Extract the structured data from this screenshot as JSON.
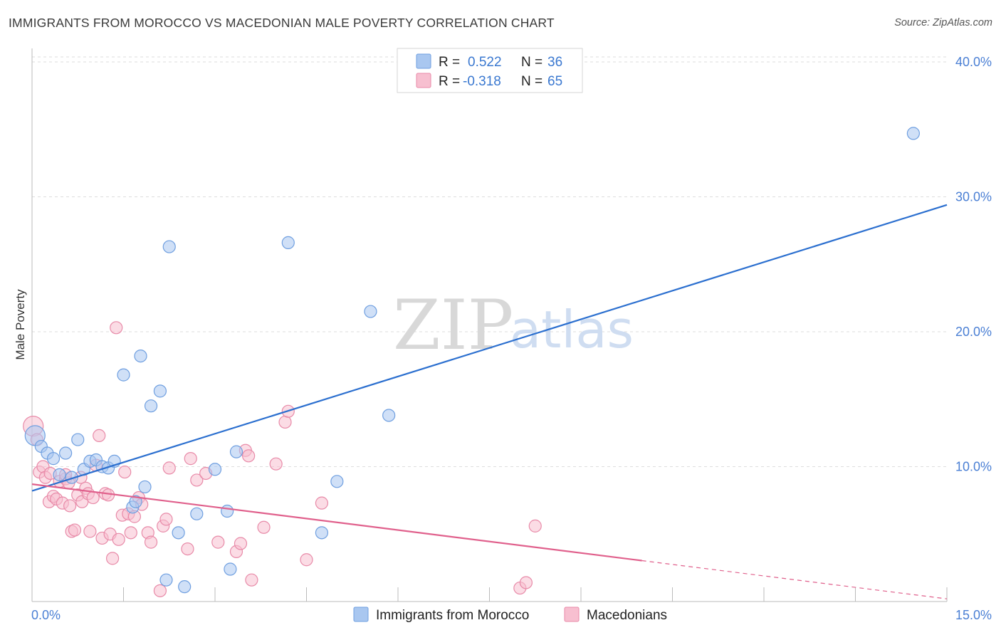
{
  "title": "IMMIGRANTS FROM MOROCCO VS MACEDONIAN MALE POVERTY CORRELATION CHART",
  "source": "Source: ZipAtlas.com",
  "watermark": {
    "zip": "ZIP",
    "atlas": "atlas"
  },
  "legend": {
    "r_label": "R =",
    "n_label": "N =",
    "rows": [
      {
        "r": "0.522",
        "n": "36"
      },
      {
        "r": "-0.318",
        "n": "65"
      }
    ]
  },
  "colors": {
    "blue_fill": "#a9c7f0",
    "blue_stroke": "#6f9fe0",
    "blue_line": "#2b6fcf",
    "pink_fill": "#f7bfd0",
    "pink_stroke": "#e88aa8",
    "pink_line": "#e0608c",
    "grid": "#dddddd",
    "axis_text": "#4a7fd4"
  },
  "chart_data": {
    "type": "scatter",
    "title": "IMMIGRANTS FROM MOROCCO VS MACEDONIAN MALE POVERTY CORRELATION CHART",
    "xlabel": "",
    "ylabel": "Male Poverty",
    "xlim": [
      0,
      15
    ],
    "ylim": [
      0,
      41
    ],
    "x_tick_labels": [
      "0.0%",
      "15.0%"
    ],
    "y_ticks": [
      10,
      20,
      30,
      40
    ],
    "y_tick_labels": [
      "10.0%",
      "20.0%",
      "30.0%",
      "40.0%"
    ],
    "series": [
      {
        "name": "Immigrants from Morocco",
        "color": "blue",
        "r": 0.522,
        "n": 36,
        "trend": {
          "x": [
            0,
            15
          ],
          "y": [
            8.2,
            29.4
          ],
          "dashed_from": null
        },
        "points": [
          [
            0.05,
            12.3
          ],
          [
            0.15,
            11.5
          ],
          [
            0.25,
            11.0
          ],
          [
            0.35,
            10.6
          ],
          [
            0.45,
            9.4
          ],
          [
            0.55,
            11.0
          ],
          [
            0.65,
            9.2
          ],
          [
            0.75,
            12.0
          ],
          [
            0.85,
            9.8
          ],
          [
            0.95,
            10.4
          ],
          [
            1.05,
            10.5
          ],
          [
            1.15,
            10.0
          ],
          [
            1.25,
            9.9
          ],
          [
            1.35,
            10.4
          ],
          [
            1.5,
            16.8
          ],
          [
            1.65,
            7.0
          ],
          [
            1.7,
            7.4
          ],
          [
            1.78,
            18.2
          ],
          [
            1.85,
            8.5
          ],
          [
            1.95,
            14.5
          ],
          [
            2.1,
            15.6
          ],
          [
            2.2,
            1.6
          ],
          [
            2.25,
            26.3
          ],
          [
            2.4,
            5.1
          ],
          [
            2.5,
            1.1
          ],
          [
            2.7,
            6.5
          ],
          [
            3.0,
            9.8
          ],
          [
            3.2,
            6.7
          ],
          [
            3.25,
            2.4
          ],
          [
            3.35,
            11.1
          ],
          [
            4.2,
            26.6
          ],
          [
            4.75,
            5.1
          ],
          [
            5.0,
            8.9
          ],
          [
            5.55,
            21.5
          ],
          [
            5.85,
            13.8
          ],
          [
            14.45,
            34.7
          ]
        ]
      },
      {
        "name": "Macedonians",
        "color": "pink",
        "r": -0.318,
        "n": 65,
        "trend": {
          "x": [
            0,
            15
          ],
          "y": [
            8.7,
            0.2
          ],
          "dashed_from": 10.0
        },
        "points": [
          [
            0.02,
            13.0
          ],
          [
            0.08,
            12.0
          ],
          [
            0.12,
            9.6
          ],
          [
            0.18,
            10.0
          ],
          [
            0.22,
            9.2
          ],
          [
            0.28,
            7.4
          ],
          [
            0.3,
            9.5
          ],
          [
            0.35,
            7.8
          ],
          [
            0.4,
            7.6
          ],
          [
            0.45,
            8.9
          ],
          [
            0.5,
            7.3
          ],
          [
            0.55,
            9.1
          ],
          [
            0.6,
            8.8
          ],
          [
            0.62,
            7.1
          ],
          [
            0.65,
            5.2
          ],
          [
            0.7,
            5.3
          ],
          [
            0.75,
            7.9
          ],
          [
            0.8,
            9.2
          ],
          [
            0.82,
            7.4
          ],
          [
            0.88,
            8.4
          ],
          [
            0.92,
            8.0
          ],
          [
            0.95,
            5.2
          ],
          [
            1.0,
            7.7
          ],
          [
            1.05,
            10.1
          ],
          [
            1.1,
            12.3
          ],
          [
            1.15,
            4.7
          ],
          [
            1.2,
            8.0
          ],
          [
            1.25,
            7.9
          ],
          [
            1.28,
            5.0
          ],
          [
            1.32,
            3.2
          ],
          [
            1.38,
            20.3
          ],
          [
            1.42,
            4.6
          ],
          [
            1.48,
            6.4
          ],
          [
            1.52,
            9.6
          ],
          [
            1.58,
            6.5
          ],
          [
            1.62,
            5.1
          ],
          [
            1.68,
            6.3
          ],
          [
            1.75,
            7.7
          ],
          [
            1.8,
            7.2
          ],
          [
            1.9,
            5.1
          ],
          [
            1.95,
            4.4
          ],
          [
            2.1,
            0.8
          ],
          [
            2.15,
            5.6
          ],
          [
            2.2,
            6.1
          ],
          [
            2.25,
            9.9
          ],
          [
            2.55,
            3.9
          ],
          [
            2.6,
            10.6
          ],
          [
            2.7,
            9.0
          ],
          [
            2.85,
            9.5
          ],
          [
            3.05,
            4.4
          ],
          [
            3.35,
            3.7
          ],
          [
            3.42,
            4.3
          ],
          [
            3.5,
            11.2
          ],
          [
            3.55,
            10.8
          ],
          [
            3.6,
            1.6
          ],
          [
            3.8,
            5.5
          ],
          [
            4.0,
            10.2
          ],
          [
            4.15,
            13.3
          ],
          [
            4.2,
            14.1
          ],
          [
            4.5,
            3.1
          ],
          [
            4.75,
            7.3
          ],
          [
            8.0,
            1.0
          ],
          [
            8.1,
            1.4
          ],
          [
            8.25,
            5.6
          ],
          [
            0.55,
            9.4
          ]
        ]
      }
    ],
    "bottom_legend": [
      "Immigrants from Morocco",
      "Macedonians"
    ]
  }
}
